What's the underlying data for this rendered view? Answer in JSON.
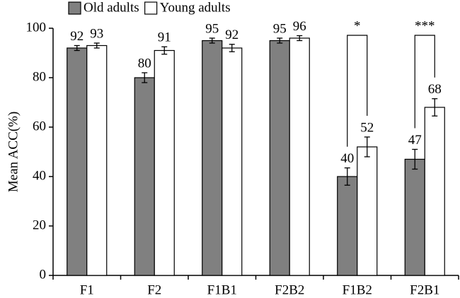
{
  "chart_data": {
    "type": "bar",
    "y_label": "Mean ACC(%)",
    "categories": [
      "F1",
      "F2",
      "F1B1",
      "F2B2",
      "F1B2",
      "F2B1"
    ],
    "series": [
      {
        "name": "Old adults",
        "color": "#808080",
        "values": [
          92,
          80,
          95,
          95,
          40,
          47
        ],
        "errors": [
          1,
          2,
          1,
          1,
          3.5,
          4
        ]
      },
      {
        "name": "Young adults",
        "color": "#ffffff",
        "values": [
          93,
          91,
          92,
          96,
          52,
          68
        ],
        "errors": [
          1,
          1.5,
          1.5,
          1,
          4,
          3.5
        ]
      }
    ],
    "annotations": [
      "*",
      "***"
    ],
    "ylim": [
      0,
      100
    ],
    "yticks": [
      0,
      20,
      40,
      60,
      80,
      100
    ],
    "legend": "top-left"
  }
}
